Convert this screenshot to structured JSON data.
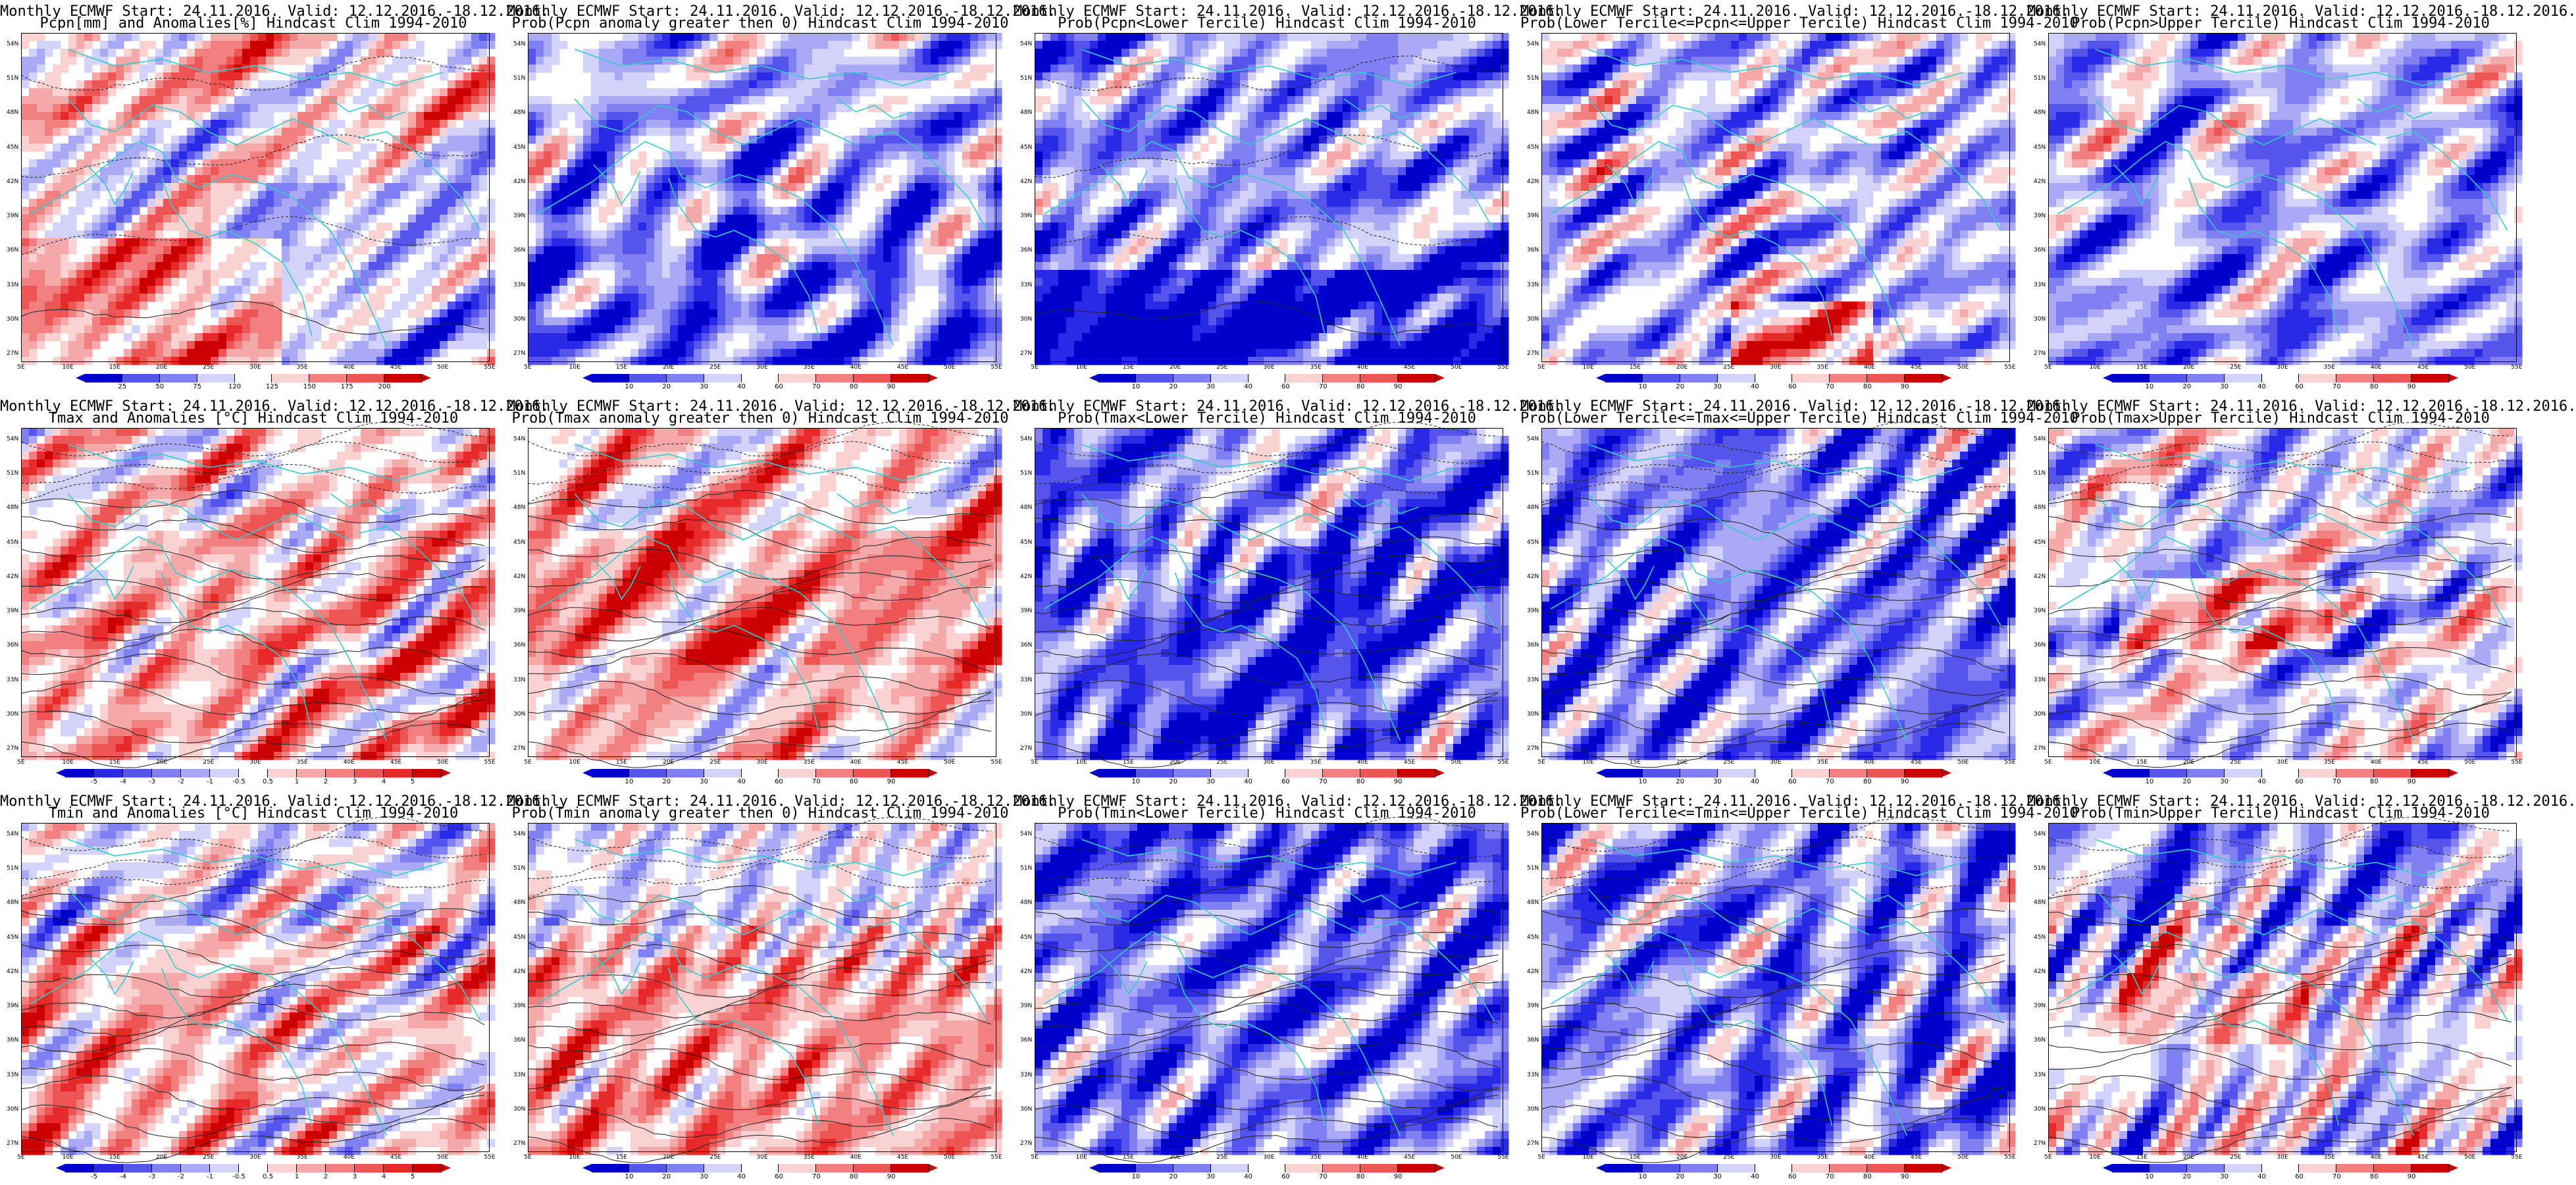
{
  "header_prefix": "Monthly ECMWF Start: 24.11.2016. Valid: 12.12.2016.-18.12.2016.",
  "lat_labels": [
    "54N",
    "51N",
    "48N",
    "45N",
    "42N",
    "39N",
    "36N",
    "33N",
    "30N",
    "27N"
  ],
  "lon_labels": [
    "5E",
    "10E",
    "15E",
    "20E",
    "25E",
    "30E",
    "35E",
    "40E",
    "45E",
    "50E",
    "55E"
  ],
  "colors": {
    "ocean_contour": "#33cccc",
    "contour": "#222222",
    "blue_scale": [
      "#0000cc",
      "#2a2ae6",
      "#5555ee",
      "#8080f2",
      "#a9a9f5",
      "#d2d2fa"
    ],
    "red_scale": [
      "#fad2d2",
      "#f5a9a9",
      "#f28080",
      "#ee5555",
      "#e62a2a",
      "#cc0000"
    ]
  },
  "panels": [
    {
      "title": "Pcpn[mm] and Anomalies[%] Hindcast Clim 1994-2010",
      "variable": "precipitation",
      "kind": "anomaly_pct",
      "colorbar": [
        "25",
        "50",
        "75",
        "120",
        "125",
        "150",
        "175",
        "200"
      ],
      "colorbar_type": "pct"
    },
    {
      "title": "Prob(Pcpn anomaly greater then 0) Hindcast Clim 1994-2010",
      "variable": "precipitation",
      "kind": "prob",
      "colorbar": [
        "10",
        "20",
        "30",
        "40",
        "60",
        "70",
        "80",
        "90"
      ],
      "colorbar_type": "prob"
    },
    {
      "title": "Prob(Pcpn<Lower Tercile) Hindcast Clim 1994-2010",
      "variable": "precipitation",
      "kind": "prob_low",
      "colorbar": [
        "10",
        "20",
        "30",
        "40",
        "60",
        "70",
        "80",
        "90"
      ],
      "colorbar_type": "prob"
    },
    {
      "title": "Prob(Lower Tercile<=Pcpn<=Upper Tercile) Hindcast Clim 1994-2010",
      "variable": "precipitation",
      "kind": "prob_mid",
      "colorbar": [
        "10",
        "20",
        "30",
        "40",
        "60",
        "70",
        "80",
        "90"
      ],
      "colorbar_type": "prob"
    },
    {
      "title": "Prob(Pcpn>Upper Tercile) Hindcast Clim 1994-2010",
      "variable": "precipitation",
      "kind": "prob_high",
      "colorbar": [
        "10",
        "20",
        "30",
        "40",
        "60",
        "70",
        "80",
        "90"
      ],
      "colorbar_type": "prob"
    },
    {
      "title": "Tmax and Anomalies [°C] Hindcast Clim 1994-2010",
      "variable": "tmax",
      "kind": "anomaly_c",
      "colorbar": [
        "-5",
        "-4",
        "-3",
        "-2",
        "-1",
        "-0.5",
        "0.5",
        "1",
        "2",
        "3",
        "4",
        "5"
      ],
      "colorbar_type": "temp"
    },
    {
      "title": "Prob(Tmax anomaly greater then 0) Hindcast Clim 1994-2010",
      "variable": "tmax",
      "kind": "prob",
      "colorbar": [
        "10",
        "20",
        "30",
        "40",
        "60",
        "70",
        "80",
        "90"
      ],
      "colorbar_type": "prob"
    },
    {
      "title": "Prob(Tmax<Lower Tercile) Hindcast Clim 1994-2010",
      "variable": "tmax",
      "kind": "prob_low",
      "colorbar": [
        "10",
        "20",
        "30",
        "40",
        "60",
        "70",
        "80",
        "90"
      ],
      "colorbar_type": "prob"
    },
    {
      "title": "Prob(Lower Tercile<=Tmax<=Upper Tercile) Hindcast Clim 1994-2010",
      "variable": "tmax",
      "kind": "prob_mid",
      "colorbar": [
        "10",
        "20",
        "30",
        "40",
        "60",
        "70",
        "80",
        "90"
      ],
      "colorbar_type": "prob"
    },
    {
      "title": "Prob(Tmax>Upper Tercile) Hindcast Clim 1994-2010",
      "variable": "tmax",
      "kind": "prob_high",
      "colorbar": [
        "10",
        "20",
        "30",
        "40",
        "60",
        "70",
        "80",
        "90"
      ],
      "colorbar_type": "prob"
    },
    {
      "title": "Tmin and Anomalies [°C] Hindcast Clim 1994-2010",
      "variable": "tmin",
      "kind": "anomaly_c",
      "colorbar": [
        "-5",
        "-4",
        "-3",
        "-2",
        "-1",
        "-0.5",
        "0.5",
        "1",
        "2",
        "3",
        "4",
        "5"
      ],
      "colorbar_type": "temp"
    },
    {
      "title": "Prob(Tmin anomaly greater then 0) Hindcast Clim 1994-2010",
      "variable": "tmin",
      "kind": "prob",
      "colorbar": [
        "10",
        "20",
        "30",
        "40",
        "60",
        "70",
        "80",
        "90"
      ],
      "colorbar_type": "prob"
    },
    {
      "title": "Prob(Tmin<Lower Tercile) Hindcast Clim 1994-2010",
      "variable": "tmin",
      "kind": "prob_low",
      "colorbar": [
        "10",
        "20",
        "30",
        "40",
        "60",
        "70",
        "80",
        "90"
      ],
      "colorbar_type": "prob"
    },
    {
      "title": "Prob(Lower Tercile<=Tmin<=Upper Tercile) Hindcast Clim 1994-2010",
      "variable": "tmin",
      "kind": "prob_mid",
      "colorbar": [
        "10",
        "20",
        "30",
        "40",
        "60",
        "70",
        "80",
        "90"
      ],
      "colorbar_type": "prob"
    },
    {
      "title": "Prob(Tmin>Upper Tercile) Hindcast Clim 1994-2010",
      "variable": "tmin",
      "kind": "prob_high",
      "colorbar": [
        "10",
        "20",
        "30",
        "40",
        "60",
        "70",
        "80",
        "90"
      ],
      "colorbar_type": "prob"
    }
  ]
}
